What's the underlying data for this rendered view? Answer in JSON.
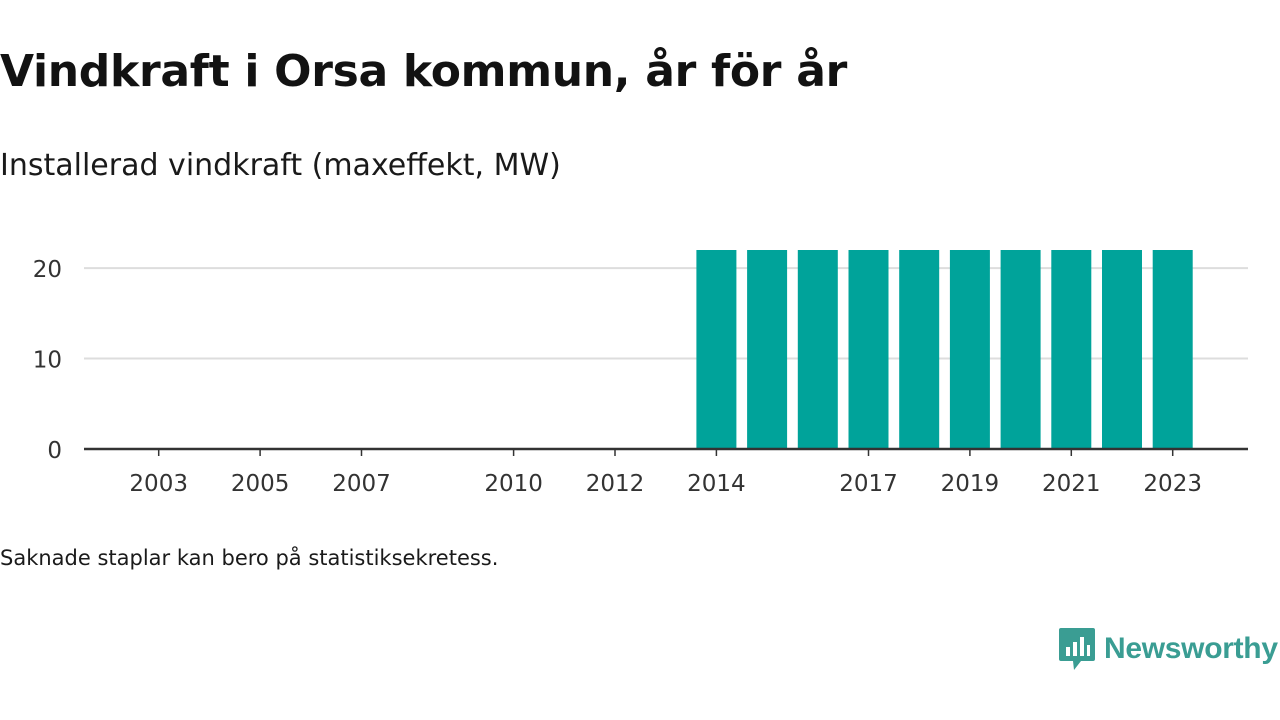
{
  "header": {
    "title": "Vindkraft i Orsa kommun, år för år",
    "subtitle": "Installerad vindkraft (maxeffekt, MW)"
  },
  "footer": {
    "note": "Saknade staplar kan bero på statistiksekretess.",
    "brand": "Newsworthy"
  },
  "colors": {
    "bar": "#00a39a",
    "grid": "#dddddd",
    "axis": "#333333",
    "brand": "#3a9d93"
  },
  "icons": {
    "brand_logo": "newsworthy-logo-icon"
  },
  "chart_data": {
    "type": "bar",
    "title": "Vindkraft i Orsa kommun, år för år",
    "subtitle": "Installerad vindkraft (maxeffekt, MW)",
    "xlabel": "",
    "ylabel": "",
    "x": [
      2002,
      2003,
      2004,
      2005,
      2006,
      2007,
      2008,
      2009,
      2010,
      2011,
      2012,
      2013,
      2014,
      2015,
      2016,
      2017,
      2018,
      2019,
      2020,
      2021,
      2022,
      2023
    ],
    "values": [
      0,
      0,
      0,
      0,
      0,
      0,
      0,
      0,
      0,
      0,
      0,
      0,
      22,
      22,
      22,
      22,
      22,
      22,
      22,
      22,
      22,
      22
    ],
    "xticks": [
      2003,
      2005,
      2007,
      2010,
      2012,
      2014,
      2017,
      2019,
      2021,
      2023
    ],
    "yticks": [
      0,
      10,
      20
    ],
    "ylim": [
      0,
      22
    ],
    "grid": "horizontal",
    "legend": "none"
  }
}
